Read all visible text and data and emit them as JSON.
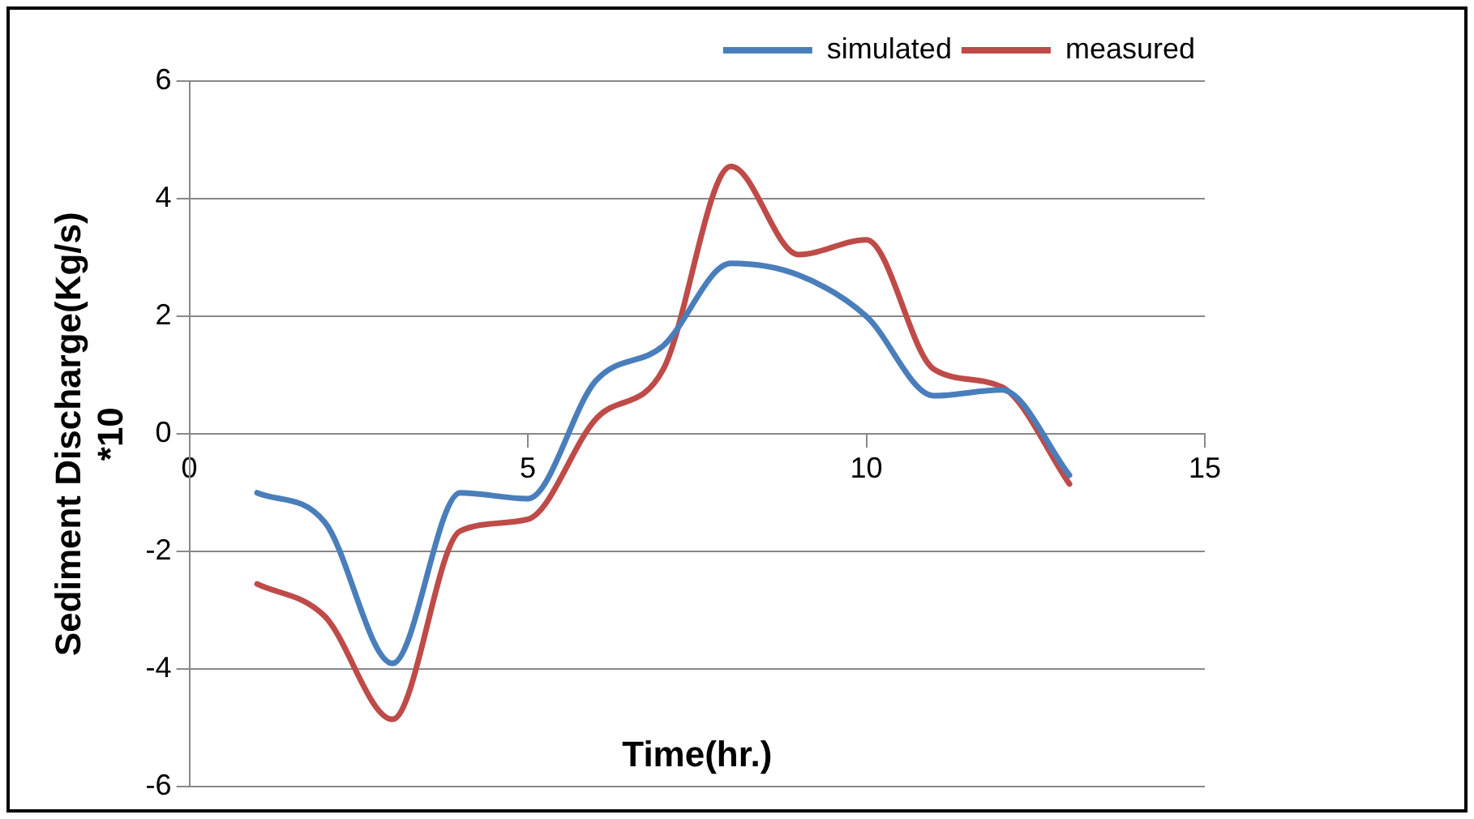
{
  "chart_data": {
    "type": "line",
    "xlabel": "Time(hr.)",
    "ylabel": "Sediment Discharge(Kg/s)\n*10",
    "x": [
      1,
      2,
      3,
      4,
      5,
      6,
      7,
      8,
      9,
      10,
      11,
      12,
      13
    ],
    "series": [
      {
        "name": "simulated",
        "color": "#4a7ebb",
        "values": [
          -1.0,
          -1.5,
          -3.9,
          -1.0,
          -1.1,
          0.9,
          1.5,
          2.9,
          2.7,
          2.0,
          0.65,
          0.75,
          -0.7
        ]
      },
      {
        "name": "measured",
        "color": "#be4b48",
        "values": [
          -2.55,
          -3.1,
          -4.85,
          -1.65,
          -1.45,
          0.25,
          1.1,
          4.55,
          3.05,
          3.3,
          1.1,
          0.8,
          -0.85
        ]
      }
    ],
    "xlim": [
      0,
      15
    ],
    "xticks": [
      0,
      5,
      10,
      15
    ],
    "ylim": [
      -6,
      6
    ],
    "yticks": [
      -6,
      -4,
      -2,
      0,
      2,
      4,
      6
    ],
    "grid": "y",
    "legend": "top right",
    "marker": "none",
    "line_style": "solid"
  }
}
